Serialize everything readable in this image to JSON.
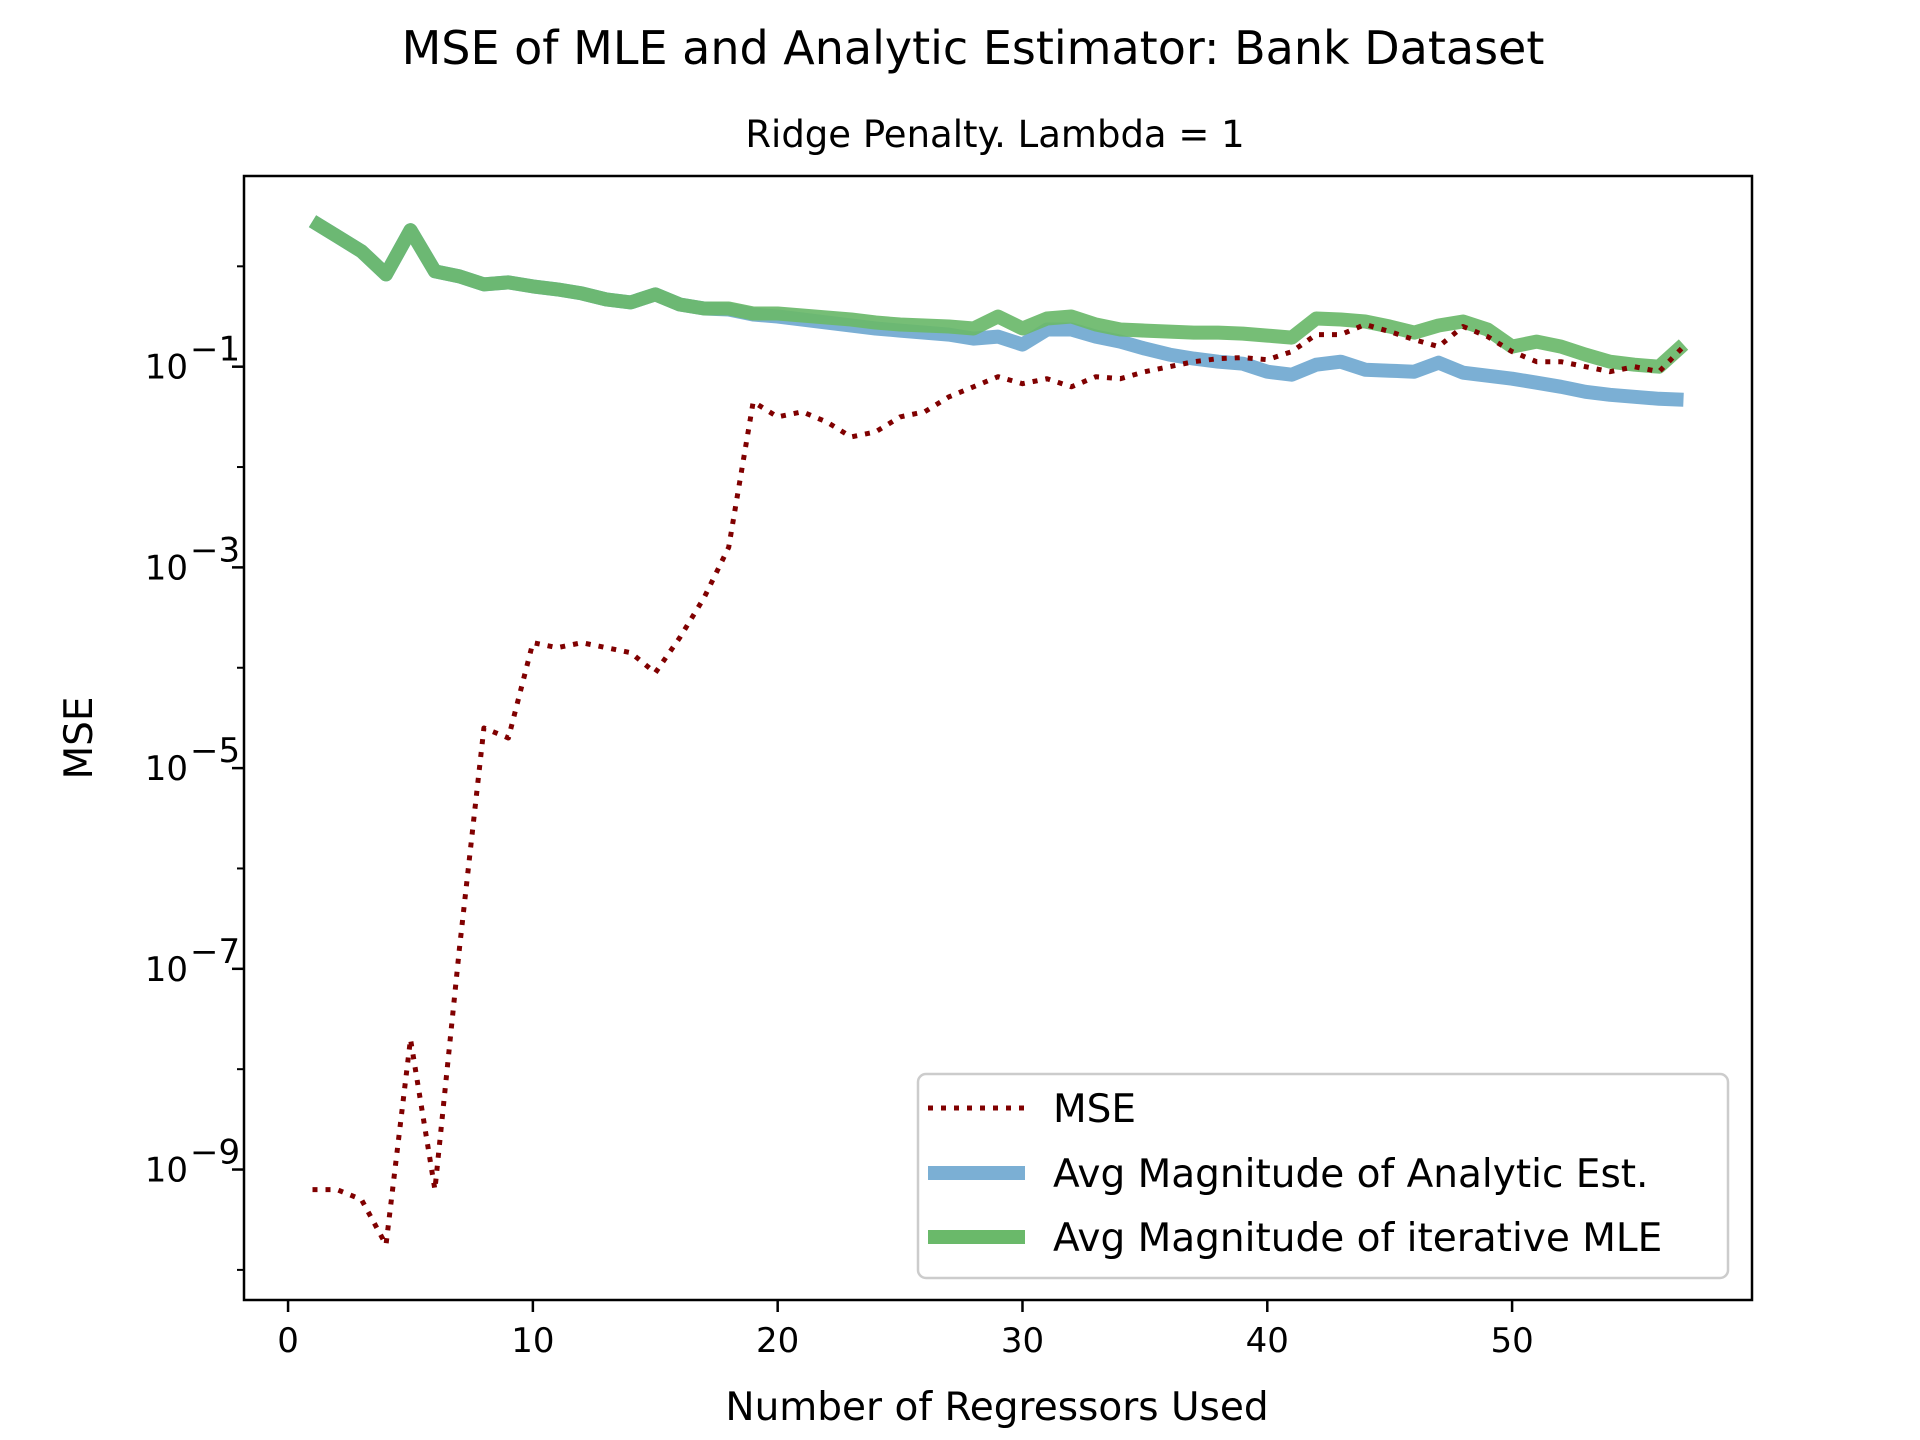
{
  "chart_data": {
    "type": "line",
    "title": "MSE of MLE and Analytic Estimator: Bank Dataset",
    "subtitle": "Ridge Penalty. Lambda = 1",
    "xlabel": "Number of Regressors Used",
    "ylabel": "MSE",
    "xlim": [
      -1.8,
      59.8
    ],
    "ylim_log10": [
      -10.3,
      0.9
    ],
    "y_scale": "log",
    "x_ticks": [
      0,
      10,
      20,
      30,
      40,
      50
    ],
    "y_ticks_exponents": [
      -9,
      -7,
      -5,
      -3,
      -1
    ],
    "y_tick_base": "10",
    "grid": false,
    "legend_position": "lower-right",
    "series": [
      {
        "name": "MSE",
        "color": "#800000",
        "style": "dotted",
        "x": [
          1,
          2,
          3,
          4,
          5,
          6,
          7,
          8,
          9,
          10,
          11,
          12,
          13,
          14,
          15,
          16,
          17,
          18,
          19,
          20,
          21,
          22,
          23,
          24,
          25,
          26,
          27,
          28,
          29,
          30,
          31,
          32,
          33,
          34,
          35,
          36,
          37,
          38,
          39,
          40,
          41,
          42,
          43,
          44,
          45,
          46,
          47,
          48,
          49,
          50,
          51,
          52,
          53,
          54,
          55,
          56,
          57
        ],
        "log10_y": [
          -9.2,
          -9.2,
          -9.3,
          -9.75,
          -7.7,
          -9.2,
          -6.8,
          -4.6,
          -4.7,
          -3.75,
          -3.8,
          -3.75,
          -3.8,
          -3.85,
          -4.05,
          -3.7,
          -3.3,
          -2.8,
          -1.35,
          -1.5,
          -1.45,
          -1.55,
          -1.7,
          -1.65,
          -1.5,
          -1.45,
          -1.3,
          -1.2,
          -1.1,
          -1.17,
          -1.12,
          -1.2,
          -1.1,
          -1.12,
          -1.05,
          -1.0,
          -0.95,
          -0.92,
          -0.91,
          -0.93,
          -0.85,
          -0.68,
          -0.68,
          -0.58,
          -0.65,
          -0.73,
          -0.8,
          -0.6,
          -0.7,
          -0.85,
          -0.95,
          -0.95,
          -1.0,
          -1.05,
          -1.0,
          -1.05,
          -0.8
        ]
      },
      {
        "name": "Avg Magnitude of Analytic Est.",
        "color": "#7bafd4",
        "style": "solid",
        "x": [
          1,
          2,
          3,
          4,
          5,
          6,
          7,
          8,
          9,
          10,
          11,
          12,
          13,
          14,
          15,
          16,
          17,
          18,
          19,
          20,
          21,
          22,
          23,
          24,
          25,
          26,
          27,
          28,
          29,
          30,
          31,
          32,
          33,
          34,
          35,
          36,
          37,
          38,
          39,
          40,
          41,
          42,
          43,
          44,
          45,
          46,
          47,
          48,
          49,
          50,
          51,
          52,
          53,
          54,
          55,
          56,
          57
        ],
        "log10_y": [
          0.45,
          0.3,
          0.15,
          -0.08,
          0.36,
          -0.05,
          -0.1,
          -0.18,
          -0.16,
          -0.2,
          -0.23,
          -0.27,
          -0.33,
          -0.36,
          -0.28,
          -0.38,
          -0.42,
          -0.43,
          -0.48,
          -0.5,
          -0.53,
          -0.56,
          -0.59,
          -0.62,
          -0.64,
          -0.66,
          -0.68,
          -0.72,
          -0.7,
          -0.78,
          -0.63,
          -0.63,
          -0.7,
          -0.75,
          -0.82,
          -0.88,
          -0.92,
          -0.95,
          -0.97,
          -1.05,
          -1.08,
          -0.98,
          -0.95,
          -1.03,
          -1.04,
          -1.05,
          -0.96,
          -1.06,
          -1.09,
          -1.12,
          -1.16,
          -1.2,
          -1.25,
          -1.28,
          -1.3,
          -1.32,
          -1.33
        ]
      },
      {
        "name": "Avg Magnitude of iterative MLE",
        "color": "#6ab96a",
        "style": "solid",
        "x": [
          1,
          2,
          3,
          4,
          5,
          6,
          7,
          8,
          9,
          10,
          11,
          12,
          13,
          14,
          15,
          16,
          17,
          18,
          19,
          20,
          21,
          22,
          23,
          24,
          25,
          26,
          27,
          28,
          29,
          30,
          31,
          32,
          33,
          34,
          35,
          36,
          37,
          38,
          39,
          40,
          41,
          42,
          43,
          44,
          45,
          46,
          47,
          48,
          49,
          50,
          51,
          52,
          53,
          54,
          55,
          56,
          57
        ],
        "log10_y": [
          0.45,
          0.3,
          0.15,
          -0.08,
          0.36,
          -0.05,
          -0.1,
          -0.18,
          -0.16,
          -0.2,
          -0.23,
          -0.27,
          -0.33,
          -0.36,
          -0.28,
          -0.38,
          -0.42,
          -0.42,
          -0.47,
          -0.47,
          -0.49,
          -0.51,
          -0.53,
          -0.56,
          -0.58,
          -0.59,
          -0.6,
          -0.62,
          -0.5,
          -0.62,
          -0.52,
          -0.5,
          -0.58,
          -0.63,
          -0.64,
          -0.65,
          -0.66,
          -0.66,
          -0.67,
          -0.69,
          -0.71,
          -0.52,
          -0.53,
          -0.55,
          -0.6,
          -0.66,
          -0.59,
          -0.55,
          -0.63,
          -0.8,
          -0.75,
          -0.8,
          -0.88,
          -0.95,
          -0.98,
          -1.0,
          -0.78
        ]
      }
    ]
  }
}
